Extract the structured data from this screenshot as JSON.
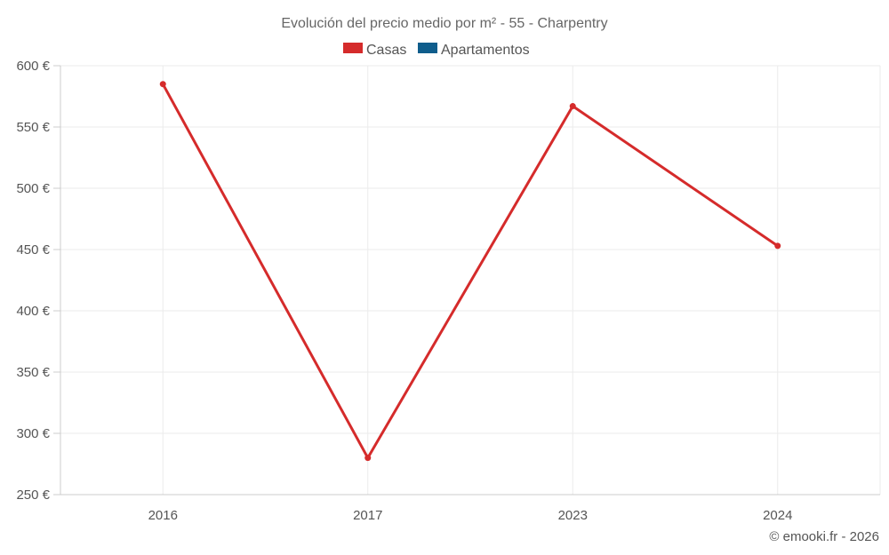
{
  "chart_data": {
    "type": "line",
    "title": "Evolución del precio medio por m² - 55 - Charpentry",
    "categories": [
      "2016",
      "2017",
      "2023",
      "2024"
    ],
    "series": [
      {
        "name": "Casas",
        "color": "#d52b2b",
        "values": [
          585,
          280,
          567,
          453
        ]
      },
      {
        "name": "Apartamentos",
        "color": "#0f5d8c",
        "values": [
          null,
          null,
          null,
          null
        ]
      }
    ],
    "ylim": [
      250,
      600
    ],
    "yticks": [
      "250 €",
      "300 €",
      "350 €",
      "400 €",
      "450 €",
      "500 €",
      "550 €",
      "600 €"
    ],
    "grid": true,
    "legend_position": "top-center"
  },
  "credit": "© emooki.fr - 2026"
}
